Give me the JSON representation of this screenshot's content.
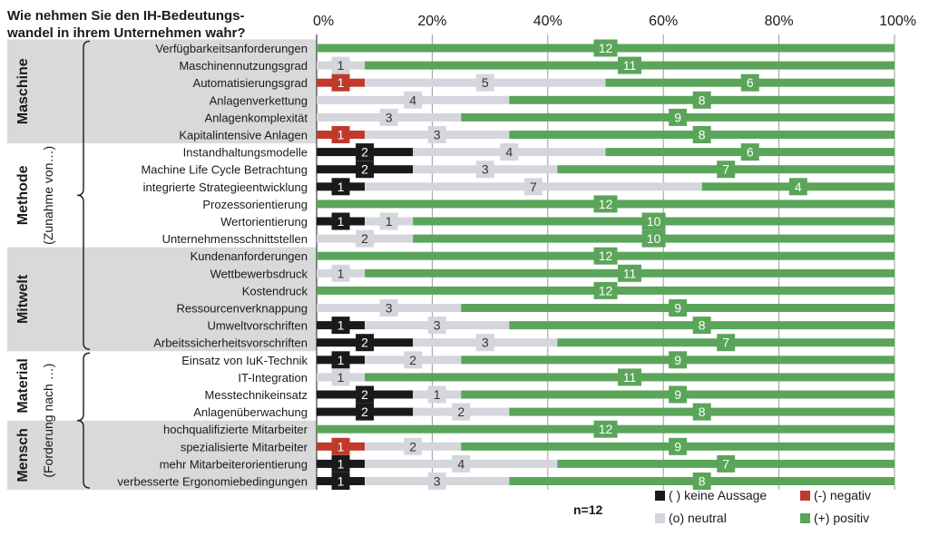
{
  "chart_data": {
    "type": "bar",
    "stacked": "percent",
    "orientation": "horizontal",
    "title": "Wie nehmen Sie den IH-Bedeutungs- wandel  in ihrem Unternehmen wahr?",
    "title_lines": [
      "Wie nehmen Sie den IH-Bedeutungs-",
      "wandel  in ihrem Unternehmen wahr?"
    ],
    "xlim": [
      0,
      100
    ],
    "x_ticks": [
      "0%",
      "20%",
      "40%",
      "60%",
      "80%",
      "100%"
    ],
    "grid": true,
    "n_label": "n=12",
    "groups": [
      {
        "name": "Maschine",
        "shaded": true,
        "start": 0,
        "end": 5
      },
      {
        "name": "Methode",
        "shaded": false,
        "start": 6,
        "end": 11
      },
      {
        "name": "Mitwelt",
        "shaded": true,
        "start": 12,
        "end": 17
      },
      {
        "name": "Material",
        "shaded": false,
        "start": 18,
        "end": 21
      },
      {
        "name": "Mensch",
        "shaded": true,
        "start": 22,
        "end": 25
      }
    ],
    "brace_notes": [
      {
        "text": "(Zunahme von…)",
        "start": 0,
        "end": 17
      },
      {
        "text": "(Forderung nach …)",
        "start": 18,
        "end": 25
      }
    ],
    "categories": [
      "Verfügbarkeitsanforderungen",
      "Maschinennutzungsgrad",
      "Automatisierungsgrad",
      "Anlagenverkettung",
      "Anlagenkomplexität",
      "Kapitalintensive Anlagen",
      "Instandhaltungsmodelle",
      "Machine Life Cycle Betrachtung",
      "integrierte Strategieentwicklung",
      "Prozessorientierung",
      "Wertorientierung",
      "Unternehmensschnittstellen",
      "Kundenanforderungen",
      "Wettbewerbsdruck",
      "Kostendruck",
      "Ressourcenverknappung",
      "Umweltvorschriften",
      "Arbeitssicherheitsvorschriften",
      "Einsatz von IuK-Technik",
      "IT-Integration",
      "Messtechnikeinsatz",
      "Anlagenüberwachung",
      "hochqualifizierte Mitarbeiter",
      "spezialisierte Mitarbeiter",
      "mehr Mitarbeiterorientierung",
      "verbesserte Ergonomiebedingungen"
    ],
    "series": [
      {
        "name": "( ) keine Aussage",
        "color": "#1a1a1a",
        "values": [
          0,
          0,
          0,
          0,
          0,
          0,
          2,
          2,
          1,
          0,
          1,
          0,
          0,
          0,
          0,
          0,
          1,
          2,
          1,
          0,
          2,
          2,
          0,
          0,
          1,
          1
        ]
      },
      {
        "name": "(-) negativ",
        "color": "#c0392b",
        "values": [
          0,
          0,
          1,
          0,
          0,
          1,
          0,
          0,
          0,
          0,
          0,
          0,
          0,
          0,
          0,
          0,
          0,
          0,
          0,
          0,
          0,
          0,
          0,
          1,
          0,
          0
        ]
      },
      {
        "name": "(o) neutral",
        "color": "#d4d6dc",
        "values": [
          0,
          1,
          5,
          4,
          3,
          3,
          4,
          3,
          7,
          0,
          1,
          2,
          0,
          1,
          0,
          3,
          3,
          3,
          2,
          1,
          1,
          2,
          0,
          2,
          4,
          3
        ]
      },
      {
        "name": "(+) positiv",
        "color": "#5aa55a",
        "values": [
          12,
          11,
          6,
          8,
          9,
          8,
          6,
          7,
          4,
          12,
          10,
          10,
          12,
          11,
          12,
          9,
          8,
          7,
          9,
          11,
          9,
          8,
          12,
          9,
          7,
          8
        ]
      }
    ]
  }
}
